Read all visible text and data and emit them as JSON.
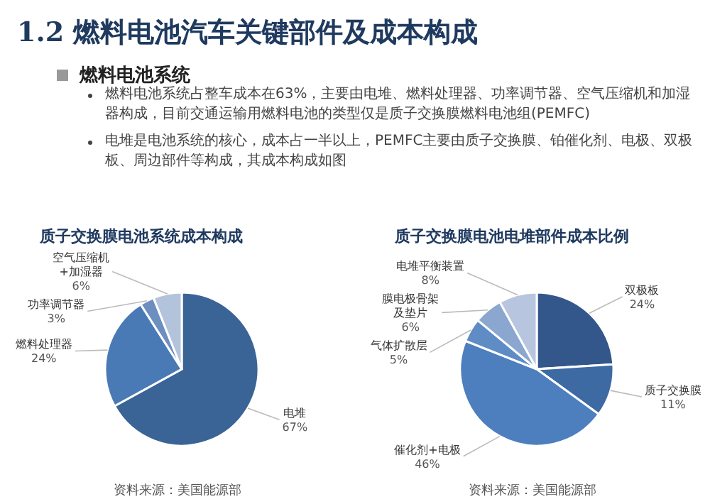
{
  "chart_data": [
    {
      "type": "other",
      "title": "1.2 燃料电池汽车关键部件及成本构成",
      "subtitle": "燃料电池系统",
      "annotations": [
        "燃料电池系统占整车成本在63%，主要由电堆、燃料处理器、功率调节器、空气压缩机和加湿器构成，目前交通运输用燃料电池的类型仅是质子交换膜燃料电池组(PEMFC)",
        "电堆是电池系统的核心，成本占一半以上，PEMFC主要由质子交换膜、铂催化剂、电极、双极板、周边部件等构成，其成本构成如图"
      ]
    },
    {
      "type": "pie",
      "title": "质子交换膜电池系统成本构成",
      "categories": [
        "电堆",
        "燃料处理器",
        "功率调节器",
        "空气压缩机+加湿器"
      ],
      "values": [
        67,
        24,
        3,
        6
      ],
      "value_labels": [
        "67%",
        "24%",
        "3%",
        "6%"
      ],
      "colors": [
        "#3a6496",
        "#4a7ab5",
        "#6d8fc0",
        "#b4c3dc"
      ],
      "annotations": [
        "资料来源：美国能源部"
      ]
    },
    {
      "type": "pie",
      "title": "质子交换膜电池电堆部件成本比例",
      "categories": [
        "双极板",
        "质子交换膜",
        "催化剂+电极",
        "气体扩散层",
        "膜电极骨架及垫片",
        "电堆平衡装置"
      ],
      "values": [
        24,
        11,
        46,
        5,
        6,
        8
      ],
      "value_labels": [
        "24%",
        "11%",
        "46%",
        "5%",
        "6%",
        "8%"
      ],
      "colors": [
        "#33578a",
        "#3e6aa3",
        "#4d7fbf",
        "#5f8cc5",
        "#8ba7d0",
        "#b7c6de"
      ],
      "annotations": [
        "资料来源：美国能源部"
      ]
    }
  ]
}
